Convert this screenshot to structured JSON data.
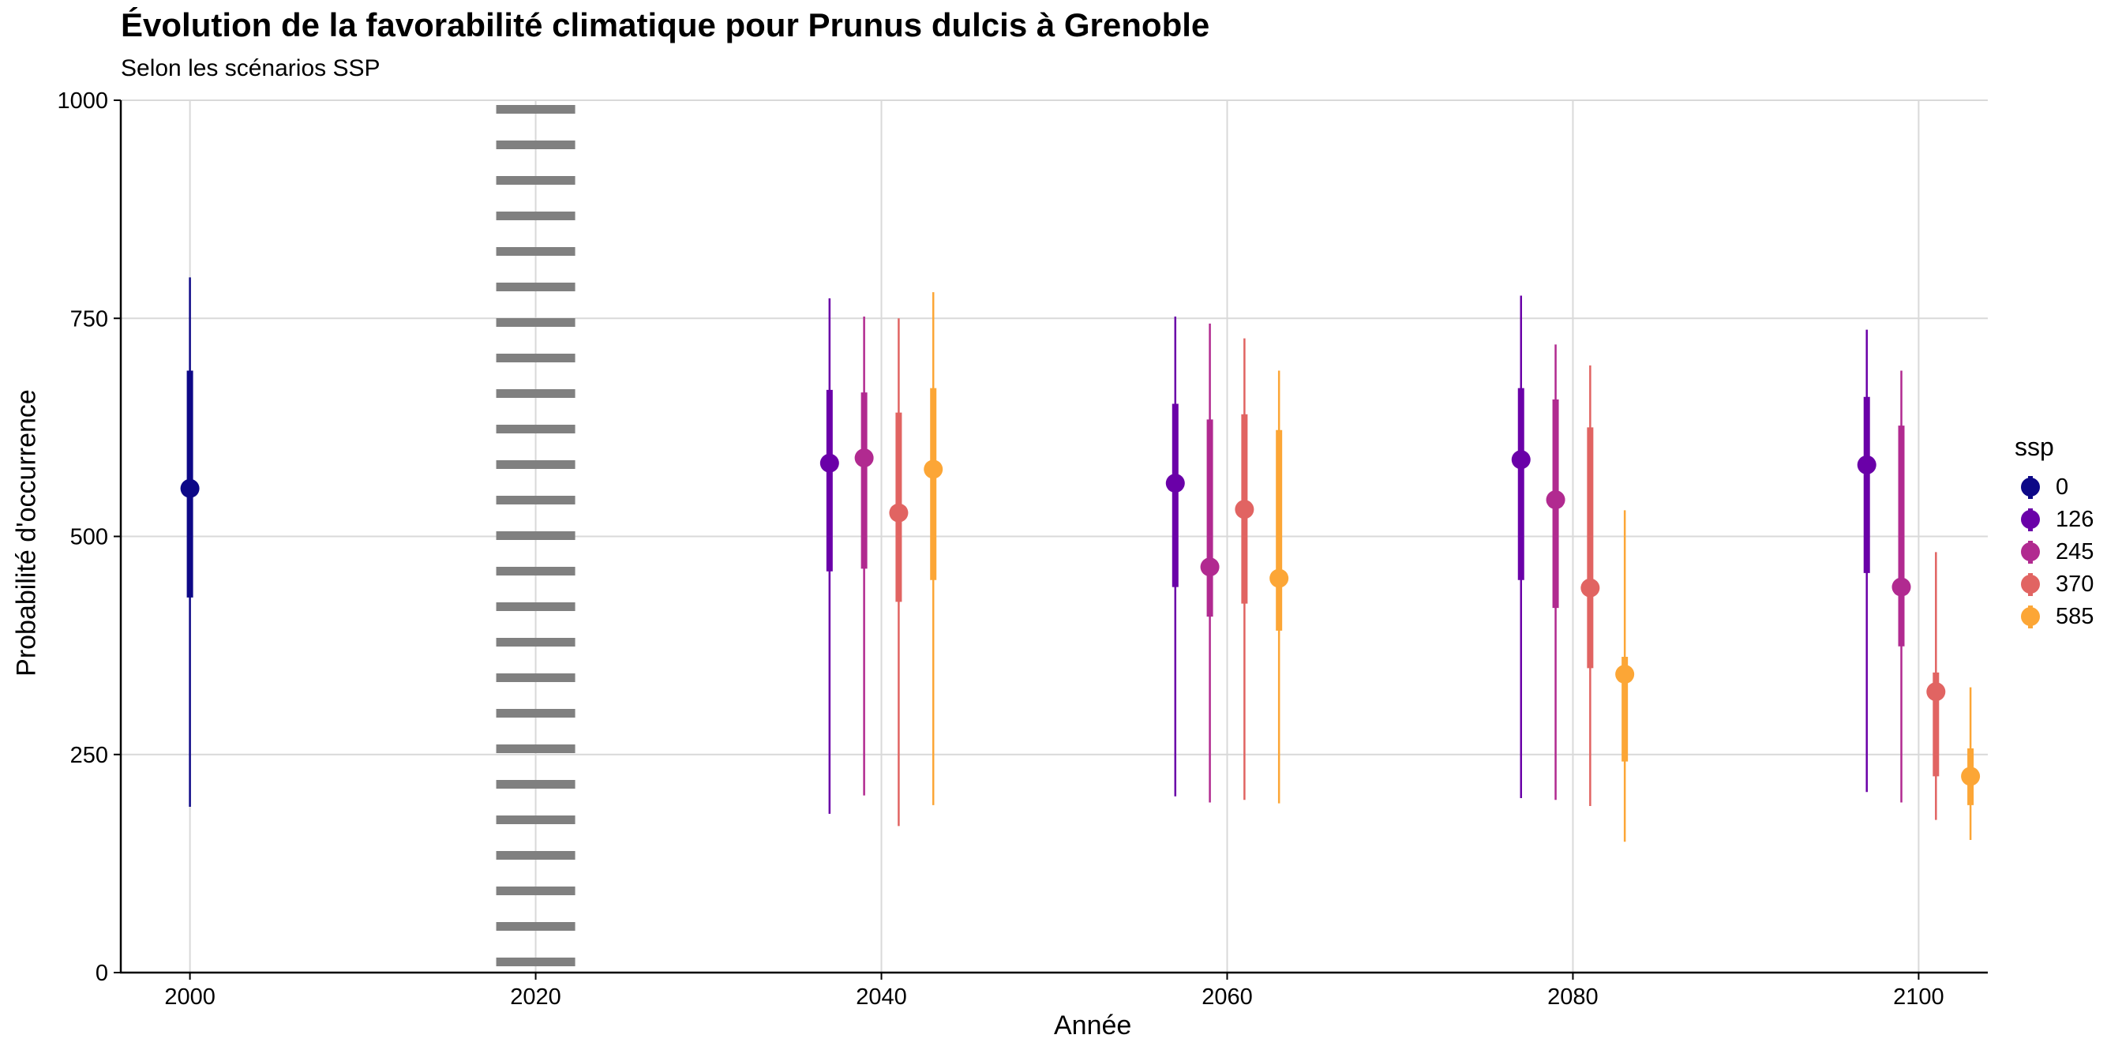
{
  "chart_data": {
    "type": "pointrange",
    "title": "Évolution de la favorabilité climatique pour Prunus dulcis à Grenoble",
    "subtitle": "Selon les scénarios SSP",
    "xlabel": "Année",
    "ylabel": "Probabilité d'occurrence",
    "xlim": [
      1996,
      2104
    ],
    "ylim": [
      0,
      1000
    ],
    "x_ticks": [
      2000,
      2020,
      2040,
      2060,
      2080,
      2100
    ],
    "y_ticks": [
      0,
      250,
      500,
      750,
      1000
    ],
    "reference_line": {
      "x": 2020,
      "style": "dotted",
      "color": "#808080"
    },
    "legend": {
      "title": "ssp",
      "position": "right"
    },
    "series": [
      {
        "name": "0",
        "color": "#0D0887",
        "points": [
          {
            "x": 2000,
            "y": 555,
            "low": 190,
            "high": 797,
            "q1": 430,
            "q3": 690
          }
        ]
      },
      {
        "name": "126",
        "color": "#6A00A8",
        "points": [
          {
            "x": 2037,
            "y": 584,
            "low": 182,
            "high": 773,
            "q1": 460,
            "q3": 668
          },
          {
            "x": 2057,
            "y": 561,
            "low": 202,
            "high": 752,
            "q1": 442,
            "q3": 652
          },
          {
            "x": 2077,
            "y": 588,
            "low": 200,
            "high": 776,
            "q1": 450,
            "q3": 670
          },
          {
            "x": 2097,
            "y": 582,
            "low": 207,
            "high": 737,
            "q1": 458,
            "q3": 660
          }
        ]
      },
      {
        "name": "245",
        "color": "#B12A90",
        "points": [
          {
            "x": 2039,
            "y": 590,
            "low": 203,
            "high": 752,
            "q1": 463,
            "q3": 665
          },
          {
            "x": 2059,
            "y": 465,
            "low": 195,
            "high": 744,
            "q1": 408,
            "q3": 634
          },
          {
            "x": 2079,
            "y": 542,
            "low": 198,
            "high": 720,
            "q1": 418,
            "q3": 657
          },
          {
            "x": 2099,
            "y": 442,
            "low": 195,
            "high": 690,
            "q1": 374,
            "q3": 627
          }
        ]
      },
      {
        "name": "370",
        "color": "#E16462",
        "points": [
          {
            "x": 2041,
            "y": 527,
            "low": 168,
            "high": 750,
            "q1": 425,
            "q3": 642
          },
          {
            "x": 2061,
            "y": 531,
            "low": 198,
            "high": 727,
            "q1": 423,
            "q3": 640
          },
          {
            "x": 2081,
            "y": 441,
            "low": 191,
            "high": 696,
            "q1": 349,
            "q3": 625
          },
          {
            "x": 2101,
            "y": 322,
            "low": 175,
            "high": 482,
            "q1": 225,
            "q3": 344
          }
        ]
      },
      {
        "name": "585",
        "color": "#FCA636",
        "points": [
          {
            "x": 2043,
            "y": 577,
            "low": 192,
            "high": 780,
            "q1": 450,
            "q3": 670
          },
          {
            "x": 2063,
            "y": 452,
            "low": 194,
            "high": 690,
            "q1": 392,
            "q3": 622
          },
          {
            "x": 2083,
            "y": 342,
            "low": 150,
            "high": 530,
            "q1": 242,
            "q3": 362
          },
          {
            "x": 2103,
            "y": 225,
            "low": 152,
            "high": 327,
            "q1": 192,
            "q3": 257
          }
        ]
      }
    ]
  }
}
